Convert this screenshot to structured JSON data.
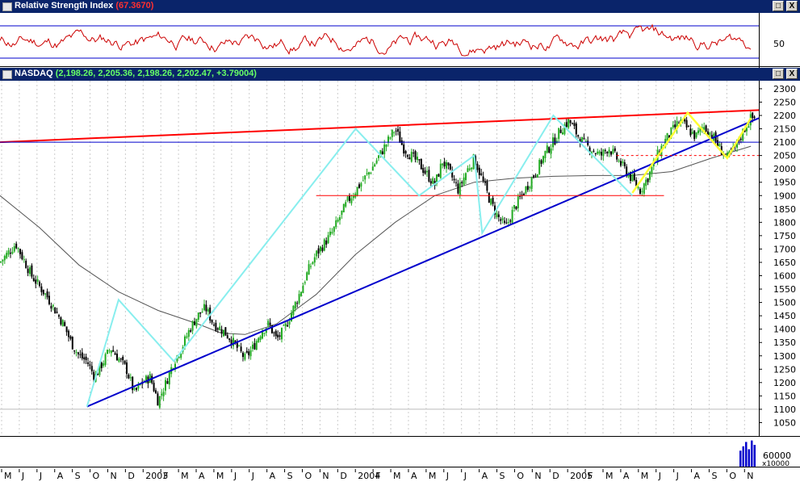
{
  "rsi_panel": {
    "title": "Relative Strength Index",
    "value": "(67.3670)",
    "y_tick": "50"
  },
  "price_panel": {
    "title": "NASDAQ",
    "ohlc": "(2,198.26, 2,205.36, 2,198.26, 2,202.47, +3.79004)"
  },
  "window_buttons": {
    "restore": "□",
    "close": "X"
  },
  "volume_panel": {
    "y_tick": "60000",
    "unit": "x10000"
  },
  "colors": {
    "titlebar": "#0a246a",
    "bull": "#22aa22",
    "bear": "#000000",
    "trend_red": "#ff0000",
    "trend_blue": "#0000cc",
    "zigzag_cyan": "#88eeee",
    "zigzag_yellow": "#ffff33",
    "rsi_line": "#cc0000",
    "moving_avg": "#555555"
  },
  "chart_data": {
    "type": "line",
    "title": "NASDAQ",
    "y_ticks": [
      1050,
      1100,
      1150,
      1200,
      1250,
      1300,
      1350,
      1400,
      1450,
      1500,
      1550,
      1600,
      1650,
      1700,
      1750,
      1800,
      1850,
      1900,
      1950,
      2000,
      2050,
      2100,
      2150,
      2200,
      2250,
      2300
    ],
    "ylim": [
      1000,
      2330
    ],
    "x_ticks": [
      "M",
      "J",
      "J",
      "A",
      "S",
      "O",
      "N",
      "D",
      "2003",
      "F",
      "M",
      "A",
      "M",
      "J",
      "J",
      "A",
      "S",
      "O",
      "N",
      "D",
      "2004",
      "F",
      "M",
      "A",
      "M",
      "J",
      "J",
      "A",
      "S",
      "O",
      "N",
      "D",
      "2005",
      "F",
      "M",
      "A",
      "M",
      "J",
      "J",
      "A",
      "S",
      "O",
      "N"
    ],
    "series": [
      {
        "kind": "close_path",
        "points": [
          [
            0,
            1650
          ],
          [
            2,
            1720
          ],
          [
            4,
            1600
          ],
          [
            6,
            1520
          ],
          [
            8,
            1420
          ],
          [
            9,
            1350
          ],
          [
            10,
            1300
          ],
          [
            11,
            1280
          ],
          [
            12,
            1220
          ],
          [
            14,
            1330
          ],
          [
            16,
            1250
          ],
          [
            17,
            1160
          ],
          [
            18,
            1200
          ],
          [
            19,
            1220
          ],
          [
            20,
            1130
          ],
          [
            21,
            1200
          ],
          [
            22,
            1280
          ],
          [
            23,
            1330
          ],
          [
            24,
            1400
          ],
          [
            25,
            1450
          ],
          [
            26,
            1480
          ],
          [
            27,
            1420
          ],
          [
            28,
            1400
          ],
          [
            29,
            1370
          ],
          [
            30,
            1330
          ],
          [
            31,
            1290
          ],
          [
            32,
            1330
          ],
          [
            33,
            1390
          ],
          [
            34,
            1420
          ],
          [
            35,
            1360
          ],
          [
            36,
            1400
          ],
          [
            37,
            1470
          ],
          [
            38,
            1540
          ],
          [
            39,
            1620
          ],
          [
            40,
            1680
          ],
          [
            41,
            1720
          ],
          [
            42,
            1760
          ],
          [
            43,
            1820
          ],
          [
            44,
            1880
          ],
          [
            45,
            1920
          ],
          [
            46,
            1960
          ],
          [
            47,
            2000
          ],
          [
            48,
            2050
          ],
          [
            49,
            2100
          ],
          [
            50,
            2150
          ],
          [
            51,
            2080
          ],
          [
            52,
            2050
          ],
          [
            53,
            2020
          ],
          [
            54,
            1980
          ],
          [
            55,
            1940
          ],
          [
            56,
            2030
          ],
          [
            57,
            1980
          ],
          [
            58,
            1920
          ],
          [
            59,
            1990
          ],
          [
            60,
            2040
          ],
          [
            61,
            1960
          ],
          [
            62,
            1880
          ],
          [
            63,
            1820
          ],
          [
            64,
            1780
          ],
          [
            65,
            1850
          ],
          [
            66,
            1900
          ],
          [
            67,
            1950
          ],
          [
            68,
            2000
          ],
          [
            69,
            2060
          ],
          [
            70,
            2100
          ],
          [
            71,
            2150
          ],
          [
            72,
            2180
          ],
          [
            73,
            2130
          ],
          [
            74,
            2090
          ],
          [
            75,
            2070
          ],
          [
            76,
            2050
          ],
          [
            77,
            2080
          ],
          [
            78,
            2040
          ],
          [
            79,
            2000
          ],
          [
            80,
            1960
          ],
          [
            81,
            1920
          ],
          [
            82,
            1970
          ],
          [
            83,
            2040
          ],
          [
            84,
            2100
          ],
          [
            85,
            2140
          ],
          [
            86,
            2180
          ],
          [
            87,
            2150
          ],
          [
            88,
            2120
          ],
          [
            89,
            2160
          ],
          [
            90,
            2130
          ],
          [
            91,
            2080
          ],
          [
            92,
            2040
          ],
          [
            93,
            2080
          ],
          [
            94,
            2140
          ],
          [
            95,
            2190
          ]
        ]
      },
      {
        "kind": "moving_average",
        "points": [
          [
            0,
            1900
          ],
          [
            5,
            1780
          ],
          [
            10,
            1640
          ],
          [
            15,
            1540
          ],
          [
            20,
            1470
          ],
          [
            25,
            1420
          ],
          [
            28,
            1385
          ],
          [
            31,
            1380
          ],
          [
            35,
            1420
          ],
          [
            40,
            1530
          ],
          [
            45,
            1680
          ],
          [
            50,
            1800
          ],
          [
            55,
            1900
          ],
          [
            60,
            1950
          ],
          [
            65,
            1965
          ],
          [
            70,
            1972
          ],
          [
            75,
            1975
          ],
          [
            80,
            1975
          ],
          [
            85,
            1990
          ],
          [
            90,
            2040
          ],
          [
            95,
            2085
          ]
        ]
      }
    ],
    "trendlines": [
      {
        "name": "red_resistance",
        "from": [
          0,
          2100
        ],
        "to": [
          96,
          2220
        ]
      },
      {
        "name": "blue_support",
        "from": [
          11,
          1110
        ],
        "to": [
          96,
          2190
        ]
      },
      {
        "name": "blue_horizontal",
        "from": [
          0,
          2100
        ],
        "to": [
          96,
          2100
        ]
      },
      {
        "name": "red_horizontal",
        "from": [
          40,
          1900
        ],
        "to": [
          84,
          1900
        ]
      },
      {
        "name": "red_dashed",
        "from": [
          78,
          2050
        ],
        "to": [
          96,
          2050
        ]
      }
    ],
    "zigzag_cyan": [
      [
        11,
        1110
      ],
      [
        15,
        1510
      ],
      [
        22,
        1280
      ],
      [
        45,
        2150
      ],
      [
        53,
        1900
      ],
      [
        60,
        2050
      ],
      [
        61,
        1760
      ],
      [
        70,
        2200
      ],
      [
        80,
        1900
      ]
    ],
    "zigzag_yellow": [
      [
        80,
        1910
      ],
      [
        87,
        2210
      ],
      [
        92,
        2040
      ],
      [
        95,
        2190
      ]
    ],
    "volume_last_bars": [
      55,
      70,
      85,
      60,
      90,
      75
    ],
    "rsi_levels": [
      70,
      30
    ]
  }
}
